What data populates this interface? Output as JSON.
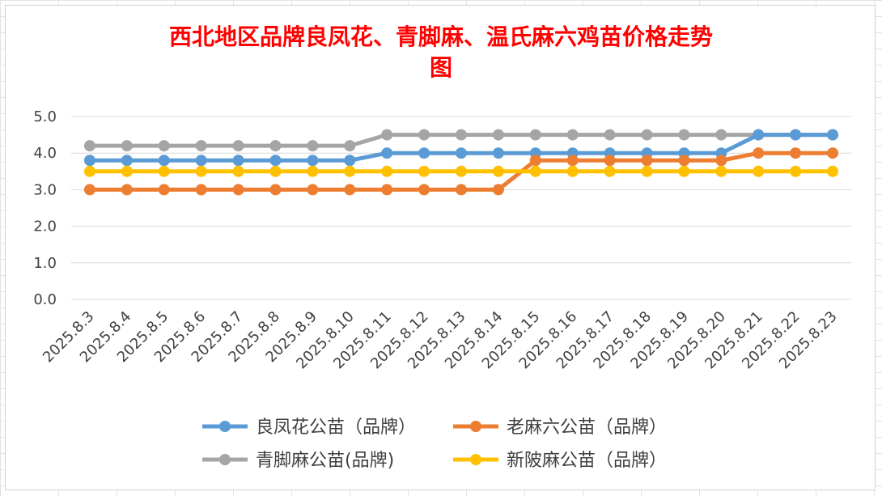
{
  "chart_data": {
    "type": "line",
    "title_line1": "西北地区品牌良凤花、青脚麻、温氏麻六鸡苗价格走势",
    "title_line2": "图",
    "title_color": "#ff0000",
    "ylim": [
      0,
      5
    ],
    "yticks": [
      "0.0",
      "1.0",
      "2.0",
      "3.0",
      "4.0",
      "5.0"
    ],
    "grid": true,
    "legend_position": "bottom",
    "categories": [
      "2025.8.3",
      "2025.8.4",
      "2025.8.5",
      "2025.8.6",
      "2025.8.7",
      "2025.8.8",
      "2025.8.9",
      "2025.8.10",
      "2025.8.11",
      "2025.8.12",
      "2025.8.13",
      "2025.8.14",
      "2025.8.15",
      "2025.8.16",
      "2025.8.17",
      "2025.8.18",
      "2025.8.19",
      "2025.8.20",
      "2025.8.21",
      "2025.8.22",
      "2025.8.23"
    ],
    "series": [
      {
        "name": "良凤花公苗（品牌）",
        "color": "#5b9bd5",
        "values": [
          3.8,
          3.8,
          3.8,
          3.8,
          3.8,
          3.8,
          3.8,
          3.8,
          4.0,
          4.0,
          4.0,
          4.0,
          4.0,
          4.0,
          4.0,
          4.0,
          4.0,
          4.0,
          4.5,
          4.5,
          4.5
        ]
      },
      {
        "name": "老麻六公苗（品牌）",
        "color": "#ed7d31",
        "values": [
          3.0,
          3.0,
          3.0,
          3.0,
          3.0,
          3.0,
          3.0,
          3.0,
          3.0,
          3.0,
          3.0,
          3.0,
          3.8,
          3.8,
          3.8,
          3.8,
          3.8,
          3.8,
          4.0,
          4.0,
          4.0
        ]
      },
      {
        "name": "青脚麻公苗(品牌)",
        "color": "#a5a5a5",
        "values": [
          4.2,
          4.2,
          4.2,
          4.2,
          4.2,
          4.2,
          4.2,
          4.2,
          4.5,
          4.5,
          4.5,
          4.5,
          4.5,
          4.5,
          4.5,
          4.5,
          4.5,
          4.5,
          4.5,
          4.5,
          4.5
        ]
      },
      {
        "name": "新陂麻公苗（品牌）",
        "color": "#ffc000",
        "values": [
          3.5,
          3.5,
          3.5,
          3.5,
          3.5,
          3.5,
          3.5,
          3.5,
          3.5,
          3.5,
          3.5,
          3.5,
          3.5,
          3.5,
          3.5,
          3.5,
          3.5,
          3.5,
          3.5,
          3.5,
          3.5
        ]
      }
    ],
    "draw_order": [
      2,
      0,
      1,
      3
    ]
  }
}
